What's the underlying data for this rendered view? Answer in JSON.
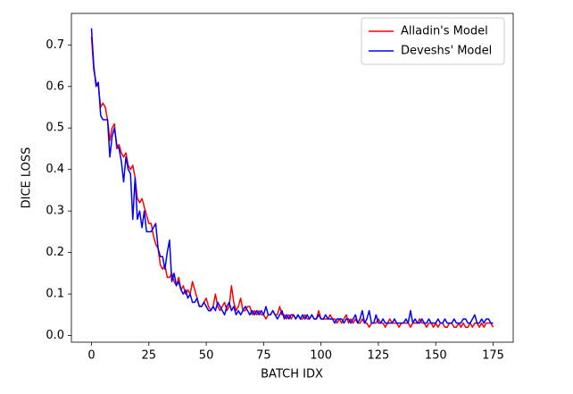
{
  "chart_data": {
    "type": "line",
    "x_label": "BATCH IDX",
    "y_label": "DICE LOSS",
    "xlim": [
      -8.75,
      183.75
    ],
    "ylim": [
      -0.016,
      0.776
    ],
    "xticks": [
      0,
      25,
      50,
      75,
      100,
      125,
      150,
      175
    ],
    "yticks": [
      {
        "value": 0,
        "label": "0.0"
      },
      0.1,
      0.2,
      0.3,
      0.4,
      0.5,
      0.6,
      0.7
    ],
    "grid": false,
    "legend": "upper-right",
    "x": [
      0,
      1,
      2,
      3,
      4,
      5,
      6,
      7,
      8,
      9,
      10,
      11,
      12,
      13,
      14,
      15,
      16,
      17,
      18,
      19,
      20,
      21,
      22,
      23,
      24,
      25,
      26,
      27,
      28,
      29,
      30,
      31,
      32,
      33,
      34,
      35,
      36,
      37,
      38,
      39,
      40,
      41,
      42,
      43,
      44,
      45,
      46,
      47,
      48,
      49,
      50,
      51,
      52,
      53,
      54,
      55,
      56,
      57,
      58,
      59,
      60,
      61,
      62,
      63,
      64,
      65,
      66,
      67,
      68,
      69,
      70,
      71,
      72,
      73,
      74,
      75,
      76,
      77,
      78,
      79,
      80,
      81,
      82,
      83,
      84,
      85,
      86,
      87,
      88,
      89,
      90,
      91,
      92,
      93,
      94,
      95,
      96,
      97,
      98,
      99,
      100,
      101,
      102,
      103,
      104,
      105,
      106,
      107,
      108,
      109,
      110,
      111,
      112,
      113,
      114,
      115,
      116,
      117,
      118,
      119,
      120,
      121,
      122,
      123,
      124,
      125,
      126,
      127,
      128,
      129,
      130,
      131,
      132,
      133,
      134,
      135,
      136,
      137,
      138,
      139,
      140,
      141,
      142,
      143,
      144,
      145,
      146,
      147,
      148,
      149,
      150,
      151,
      152,
      153,
      154,
      155,
      156,
      157,
      158,
      159,
      160,
      161,
      162,
      163,
      164,
      165,
      166,
      167,
      168,
      169,
      170,
      171,
      172,
      173,
      174,
      175
    ],
    "series": [
      {
        "name": "Alladin's Model",
        "color": "#ff0000",
        "values": [
          0.72,
          0.64,
          0.61,
          0.6,
          0.55,
          0.56,
          0.55,
          0.52,
          0.47,
          0.5,
          0.51,
          0.45,
          0.46,
          0.44,
          0.43,
          0.44,
          0.41,
          0.4,
          0.41,
          0.38,
          0.33,
          0.32,
          0.33,
          0.31,
          0.29,
          0.27,
          0.27,
          0.24,
          0.22,
          0.21,
          0.17,
          0.16,
          0.17,
          0.14,
          0.14,
          0.15,
          0.13,
          0.12,
          0.14,
          0.11,
          0.12,
          0.1,
          0.11,
          0.1,
          0.13,
          0.11,
          0.09,
          0.07,
          0.07,
          0.08,
          0.09,
          0.07,
          0.06,
          0.07,
          0.1,
          0.07,
          0.06,
          0.07,
          0.08,
          0.06,
          0.07,
          0.12,
          0.08,
          0.06,
          0.07,
          0.09,
          0.06,
          0.06,
          0.07,
          0.07,
          0.05,
          0.06,
          0.05,
          0.06,
          0.05,
          0.05,
          0.04,
          0.05,
          0.05,
          0.06,
          0.05,
          0.05,
          0.07,
          0.05,
          0.05,
          0.04,
          0.05,
          0.04,
          0.05,
          0.04,
          0.05,
          0.04,
          0.04,
          0.05,
          0.04,
          0.04,
          0.05,
          0.04,
          0.04,
          0.06,
          0.04,
          0.04,
          0.04,
          0.04,
          0.05,
          0.04,
          0.04,
          0.03,
          0.04,
          0.03,
          0.04,
          0.05,
          0.03,
          0.04,
          0.03,
          0.04,
          0.03,
          0.03,
          0.04,
          0.03,
          0.03,
          0.02,
          0.03,
          0.03,
          0.03,
          0.04,
          0.03,
          0.03,
          0.02,
          0.03,
          0.04,
          0.03,
          0.03,
          0.03,
          0.02,
          0.03,
          0.03,
          0.03,
          0.03,
          0.02,
          0.03,
          0.03,
          0.03,
          0.04,
          0.03,
          0.03,
          0.02,
          0.03,
          0.03,
          0.02,
          0.03,
          0.02,
          0.03,
          0.03,
          0.02,
          0.02,
          0.03,
          0.03,
          0.02,
          0.02,
          0.03,
          0.02,
          0.03,
          0.02,
          0.02,
          0.03,
          0.02,
          0.03,
          0.03,
          0.02,
          0.03,
          0.02,
          0.03,
          0.03,
          0.03,
          0.02
        ]
      },
      {
        "name": "Deveshs' Model",
        "color": "#0000ff",
        "values": [
          0.74,
          0.65,
          0.6,
          0.61,
          0.53,
          0.52,
          0.52,
          0.52,
          0.43,
          0.48,
          0.5,
          0.46,
          0.45,
          0.42,
          0.37,
          0.43,
          0.4,
          0.39,
          0.28,
          0.38,
          0.28,
          0.3,
          0.26,
          0.3,
          0.25,
          0.25,
          0.25,
          0.26,
          0.27,
          0.21,
          0.19,
          0.19,
          0.16,
          0.2,
          0.23,
          0.13,
          0.15,
          0.12,
          0.13,
          0.11,
          0.1,
          0.11,
          0.09,
          0.1,
          0.08,
          0.08,
          0.09,
          0.07,
          0.07,
          0.08,
          0.07,
          0.06,
          0.06,
          0.07,
          0.06,
          0.08,
          0.07,
          0.06,
          0.05,
          0.07,
          0.08,
          0.06,
          0.07,
          0.05,
          0.06,
          0.05,
          0.06,
          0.07,
          0.06,
          0.05,
          0.06,
          0.05,
          0.06,
          0.05,
          0.06,
          0.05,
          0.07,
          0.05,
          0.05,
          0.06,
          0.05,
          0.04,
          0.05,
          0.06,
          0.04,
          0.05,
          0.04,
          0.05,
          0.05,
          0.04,
          0.05,
          0.04,
          0.05,
          0.04,
          0.05,
          0.04,
          0.05,
          0.04,
          0.04,
          0.05,
          0.04,
          0.04,
          0.05,
          0.04,
          0.04,
          0.04,
          0.03,
          0.04,
          0.04,
          0.04,
          0.03,
          0.04,
          0.04,
          0.03,
          0.04,
          0.05,
          0.03,
          0.04,
          0.06,
          0.03,
          0.04,
          0.06,
          0.03,
          0.03,
          0.05,
          0.03,
          0.03,
          0.04,
          0.03,
          0.03,
          0.03,
          0.03,
          0.04,
          0.03,
          0.03,
          0.03,
          0.03,
          0.04,
          0.03,
          0.06,
          0.03,
          0.04,
          0.03,
          0.03,
          0.04,
          0.03,
          0.03,
          0.04,
          0.03,
          0.03,
          0.03,
          0.04,
          0.03,
          0.03,
          0.04,
          0.03,
          0.03,
          0.03,
          0.04,
          0.03,
          0.03,
          0.03,
          0.04,
          0.04,
          0.03,
          0.03,
          0.04,
          0.05,
          0.03,
          0.03,
          0.04,
          0.03,
          0.04,
          0.04,
          0.03,
          0.03
        ]
      }
    ]
  }
}
